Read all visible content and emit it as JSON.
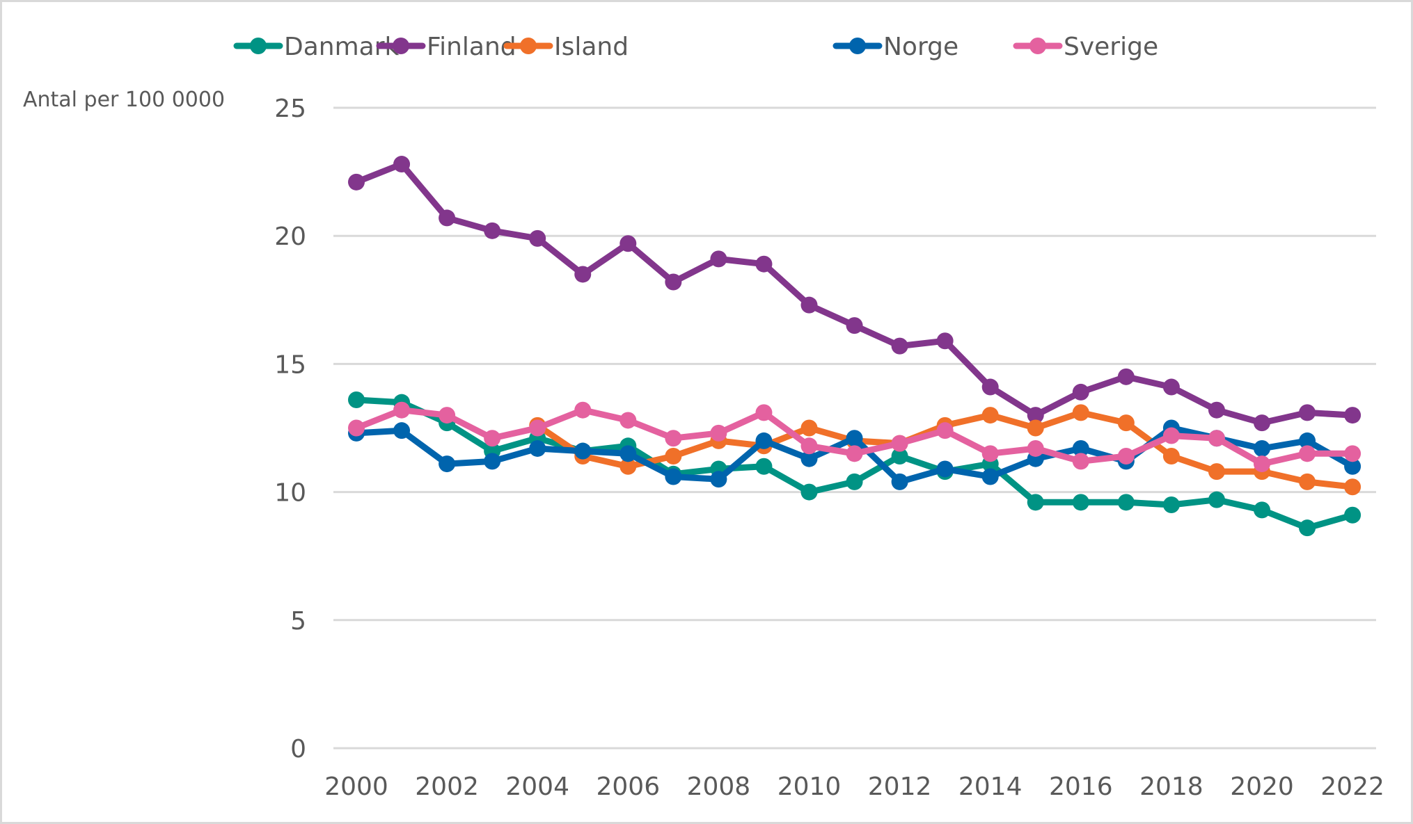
{
  "chart_data": {
    "type": "line",
    "title": "",
    "xlabel": "",
    "ylabel": "Antal per 100 0000",
    "ylim": [
      0,
      25
    ],
    "yticks": [
      0,
      5,
      10,
      15,
      20,
      25
    ],
    "ytick_labels": [
      "0",
      "5",
      "10",
      "15",
      "20",
      "25"
    ],
    "x": [
      2000,
      2001,
      2002,
      2003,
      2004,
      2005,
      2006,
      2007,
      2008,
      2009,
      2010,
      2011,
      2012,
      2013,
      2014,
      2015,
      2016,
      2017,
      2018,
      2019,
      2020,
      2021,
      2022
    ],
    "xtick_labels": [
      "2000",
      "2002",
      "2004",
      "2006",
      "2008",
      "2010",
      "2012",
      "2014",
      "2016",
      "2018",
      "2020",
      "2022"
    ],
    "grid": true,
    "legend_position": "top",
    "series": [
      {
        "name": "Danmark",
        "color": "#009384",
        "values": [
          13.6,
          13.5,
          12.7,
          11.6,
          12.1,
          11.6,
          11.8,
          10.7,
          10.9,
          11.0,
          10.0,
          10.4,
          11.4,
          10.8,
          11.1,
          9.6,
          9.6,
          9.6,
          9.5,
          9.7,
          9.3,
          8.6,
          9.1
        ]
      },
      {
        "name": "Finland",
        "color": "#82368C",
        "values": [
          22.1,
          22.8,
          20.7,
          20.2,
          19.9,
          18.5,
          19.7,
          18.2,
          19.1,
          18.9,
          17.3,
          16.5,
          15.7,
          15.9,
          14.1,
          13.0,
          13.9,
          14.5,
          14.1,
          13.2,
          12.7,
          13.1,
          13.0
        ]
      },
      {
        "name": "Island",
        "color": "#F07029",
        "values": [
          null,
          null,
          null,
          null,
          12.6,
          11.4,
          11.0,
          11.4,
          12.0,
          11.8,
          12.5,
          12.0,
          11.9,
          12.6,
          13.0,
          12.5,
          13.1,
          12.7,
          11.4,
          10.8,
          10.8,
          10.4,
          10.2
        ]
      },
      {
        "name": "Norge",
        "color": "#0064AD",
        "values": [
          12.3,
          12.4,
          11.1,
          11.2,
          11.7,
          11.6,
          11.5,
          10.6,
          10.5,
          12.0,
          11.3,
          12.1,
          10.4,
          10.9,
          10.6,
          11.3,
          11.7,
          11.2,
          12.5,
          12.1,
          11.7,
          12.0,
          11.0
        ]
      },
      {
        "name": "Sverige",
        "color": "#E4619F",
        "values": [
          12.5,
          13.2,
          13.0,
          12.1,
          12.5,
          13.2,
          12.8,
          12.1,
          12.3,
          13.1,
          11.8,
          11.5,
          11.9,
          12.4,
          11.5,
          11.7,
          11.2,
          11.4,
          12.2,
          12.1,
          11.1,
          11.5,
          11.5
        ]
      }
    ]
  }
}
